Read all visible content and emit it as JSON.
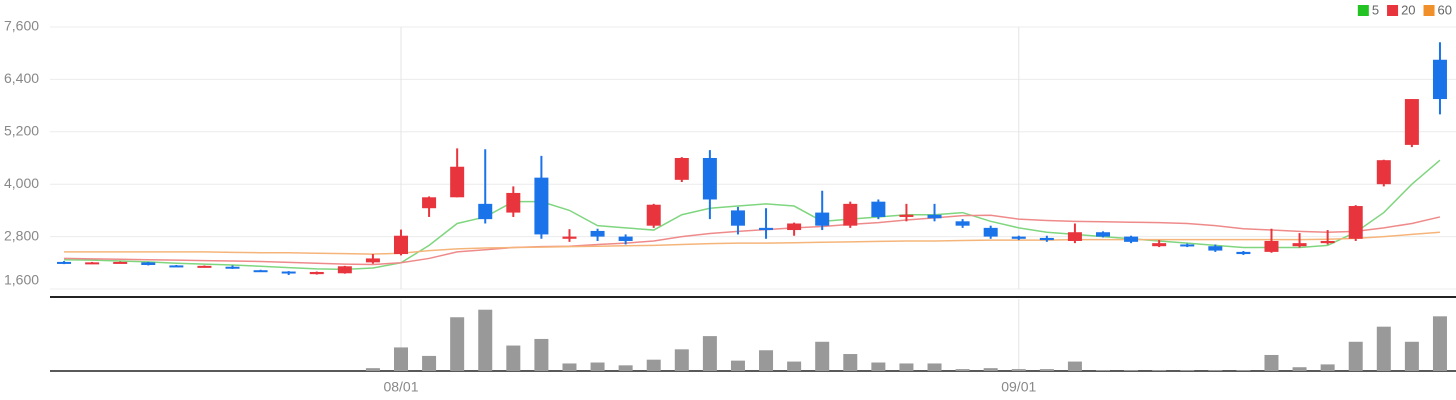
{
  "chart_data": {
    "type": "candlestick",
    "categories": [
      null,
      null,
      null,
      null,
      null,
      null,
      null,
      null,
      null,
      null,
      null,
      null,
      "08/01",
      null,
      null,
      null,
      null,
      null,
      null,
      null,
      null,
      null,
      null,
      null,
      null,
      null,
      null,
      null,
      null,
      null,
      null,
      null,
      null,
      null,
      "09/01",
      null,
      null,
      null,
      null,
      null,
      null,
      null,
      null,
      null,
      null,
      null,
      null,
      null,
      null,
      null
    ],
    "open": [
      2220,
      2190,
      2200,
      2210,
      2140,
      2110,
      2110,
      2030,
      2000,
      1940,
      1960,
      2210,
      2400,
      3450,
      3700,
      3550,
      3350,
      4150,
      2750,
      2930,
      2800,
      3050,
      4100,
      4600,
      3400,
      3000,
      2950,
      3350,
      3050,
      3600,
      3250,
      3300,
      3150,
      3000,
      2800,
      2770,
      2700,
      2900,
      2800,
      2580,
      2620,
      2580,
      2450,
      2450,
      2580,
      2650,
      2750,
      4000,
      4900,
      6850
    ],
    "high": [
      2240,
      2220,
      2230,
      2220,
      2150,
      2140,
      2140,
      2040,
      2010,
      2000,
      2130,
      2400,
      2960,
      3720,
      4820,
      4800,
      3950,
      4650,
      2970,
      2980,
      2850,
      3550,
      4620,
      4780,
      3480,
      3450,
      3120,
      3850,
      3600,
      3650,
      3550,
      3550,
      3200,
      3050,
      2820,
      2820,
      3100,
      2920,
      2820,
      2720,
      2640,
      2620,
      2470,
      2980,
      2880,
      2950,
      3520,
      4560,
      5950,
      7250
    ],
    "low": [
      2170,
      2170,
      2190,
      2140,
      2110,
      2100,
      2060,
      2000,
      1920,
      1930,
      1950,
      2180,
      2370,
      3250,
      3700,
      3100,
      3250,
      2750,
      2680,
      2700,
      2620,
      3000,
      4050,
      3200,
      2850,
      2750,
      2820,
      2950,
      3000,
      3200,
      3150,
      3150,
      3000,
      2750,
      2720,
      2680,
      2650,
      2780,
      2650,
      2560,
      2560,
      2450,
      2380,
      2430,
      2550,
      2620,
      2700,
      3950,
      4850,
      5600
    ],
    "close": [
      2190,
      2210,
      2220,
      2150,
      2120,
      2130,
      2080,
      2010,
      1960,
      1990,
      2120,
      2300,
      2820,
      3700,
      4400,
      3200,
      3800,
      2850,
      2800,
      2800,
      2700,
      3530,
      4600,
      3650,
      3050,
      2950,
      3100,
      3050,
      3550,
      3250,
      3300,
      3220,
      3050,
      2800,
      2750,
      2720,
      2900,
      2800,
      2680,
      2650,
      2580,
      2480,
      2400,
      2700,
      2650,
      2700,
      3500,
      4550,
      5950,
      5950
    ],
    "up_color": "#e8343c",
    "down_color": "#1a73e8",
    "moving_averages": [
      {
        "name": "5",
        "color": "#22c322",
        "line_color": "#7fd67f",
        "values": [
          2270,
          2260,
          2240,
          2220,
          2190,
          2170,
          2150,
          2120,
          2090,
          2060,
          2050,
          2080,
          2200,
          2600,
          3100,
          3250,
          3600,
          3600,
          3400,
          3050,
          3000,
          2950,
          3300,
          3450,
          3500,
          3550,
          3500,
          3150,
          3200,
          3250,
          3300,
          3300,
          3350,
          3150,
          3000,
          2900,
          2850,
          2800,
          2750,
          2700,
          2650,
          2600,
          2550,
          2550,
          2550,
          2600,
          2900,
          3350,
          4000,
          4550
        ]
      },
      {
        "name": "20",
        "color": "#e8343c",
        "line_color": "#ef8a8a",
        "values": [
          2300,
          2290,
          2280,
          2270,
          2260,
          2250,
          2240,
          2230,
          2210,
          2190,
          2170,
          2160,
          2200,
          2300,
          2450,
          2500,
          2550,
          2570,
          2580,
          2620,
          2650,
          2700,
          2800,
          2870,
          2920,
          2960,
          3000,
          3030,
          3080,
          3120,
          3180,
          3230,
          3280,
          3290,
          3200,
          3170,
          3150,
          3140,
          3130,
          3120,
          3100,
          3050,
          2980,
          2950,
          2920,
          2900,
          2920,
          3000,
          3100,
          3250
        ]
      },
      {
        "name": "60",
        "color": "#f0902a",
        "line_color": "#f5b57a",
        "values": [
          2450,
          2450,
          2450,
          2450,
          2450,
          2450,
          2440,
          2430,
          2430,
          2420,
          2410,
          2400,
          2420,
          2480,
          2520,
          2540,
          2550,
          2560,
          2570,
          2580,
          2590,
          2600,
          2620,
          2640,
          2650,
          2650,
          2660,
          2670,
          2680,
          2690,
          2700,
          2700,
          2710,
          2720,
          2720,
          2720,
          2730,
          2730,
          2730,
          2730,
          2730,
          2730,
          2730,
          2730,
          2730,
          2740,
          2760,
          2800,
          2850,
          2900
        ]
      }
    ],
    "volume": [
      0,
      0,
      0,
      0,
      0,
      0,
      0,
      0,
      0,
      0,
      0,
      3,
      25,
      16,
      57,
      65,
      27,
      34,
      8,
      9,
      6,
      12,
      23,
      37,
      11,
      22,
      10,
      31,
      18,
      9,
      8,
      8,
      2,
      3,
      2,
      2,
      10,
      1,
      1,
      1,
      1,
      1,
      1,
      17,
      4,
      7,
      31,
      47,
      31,
      58
    ],
    "volume_color": "#999999",
    "volume_ylim": [
      0,
      70
    ],
    "ylim": [
      1600,
      7600
    ],
    "yticks": [
      {
        "value": 1600,
        "label": "1,600"
      },
      {
        "value": 2800,
        "label": "2,800"
      },
      {
        "value": 4000,
        "label": "4,000"
      },
      {
        "value": 5200,
        "label": "5,200"
      },
      {
        "value": 6400,
        "label": "6,400"
      },
      {
        "value": 7600,
        "label": "7,600"
      }
    ],
    "grid": true,
    "legend": "top-right"
  }
}
